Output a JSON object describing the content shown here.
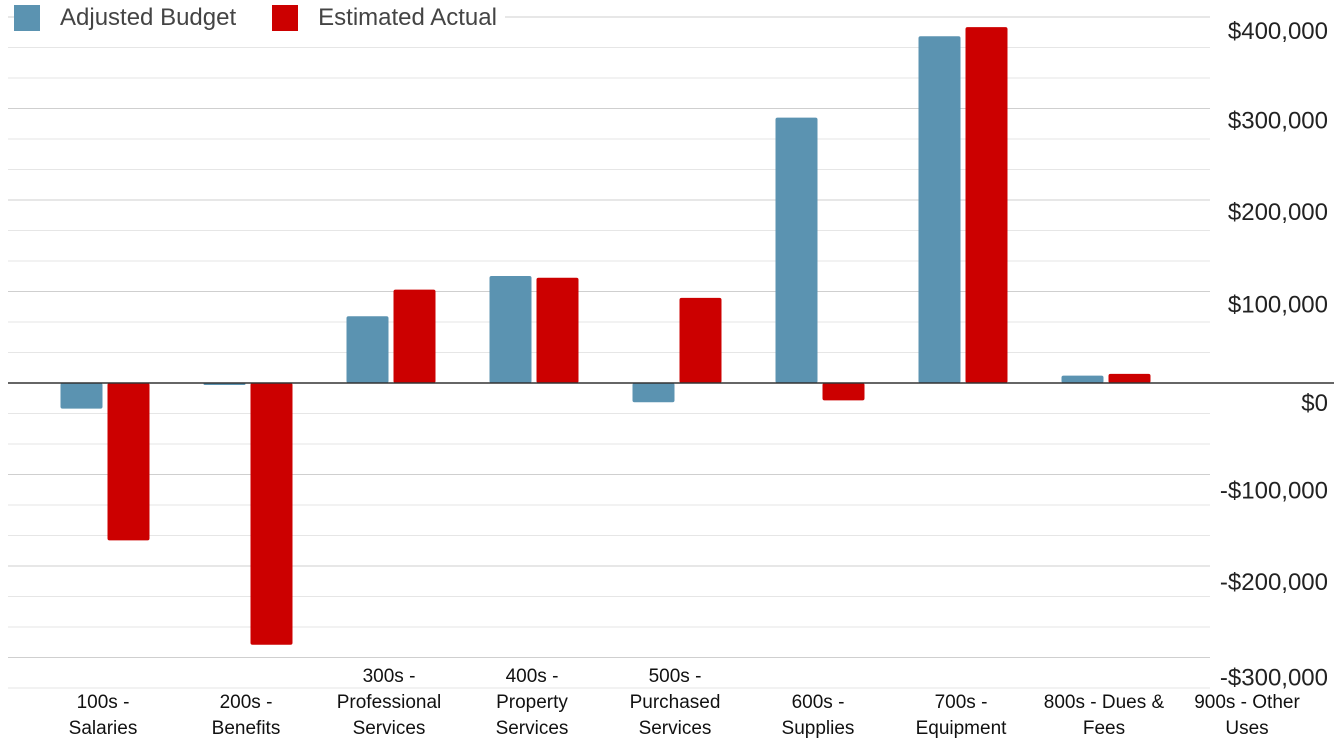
{
  "chart_data": {
    "type": "bar",
    "categories": [
      [
        "100s -",
        "Salaries"
      ],
      [
        "200s -",
        "Benefits"
      ],
      [
        "300s -",
        "Professional",
        "Services"
      ],
      [
        "400s -",
        "Property",
        "Services"
      ],
      [
        "500s -",
        "Purchased",
        "Services"
      ],
      [
        "600s -",
        "Supplies"
      ],
      [
        "700s -",
        "Equipment"
      ],
      [
        "800s - Dues &",
        "Fees"
      ],
      [
        "900s - Other",
        "Uses"
      ]
    ],
    "series": [
      {
        "name": "Adjusted Budget",
        "color": "#5b93b1",
        "values": [
          -28000,
          -1000,
          73000,
          117000,
          -21000,
          290000,
          379000,
          8000,
          0
        ]
      },
      {
        "name": "Estimated Actual",
        "color": "#cc0000",
        "values": [
          -172000,
          -286000,
          102000,
          115000,
          93000,
          -19000,
          389000,
          10000,
          0
        ]
      }
    ],
    "ylim": [
      -300000,
      400000
    ],
    "yticks": [
      400000,
      300000,
      200000,
      100000,
      0,
      -100000,
      -200000,
      -300000
    ],
    "ytick_labels": [
      "$400,000",
      "$300,000",
      "$200,000",
      "$100,000",
      "$0",
      "-$100,000",
      "-$200,000",
      "-$300,000"
    ],
    "y_axis_position": "right",
    "legend_position": "top-left",
    "grid": true
  }
}
